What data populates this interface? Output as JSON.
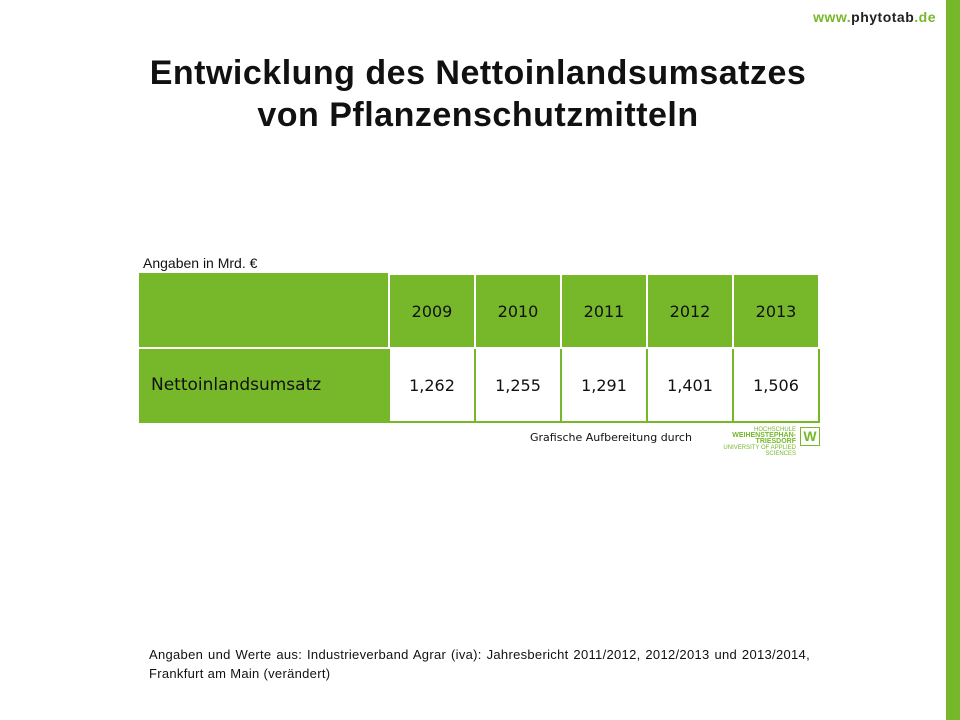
{
  "header": {
    "url_prefix": "www.",
    "url_main": "phytotab",
    "url_suffix": ".de"
  },
  "title_line1": "Entwicklung des Nettoinlandsumsatzes",
  "title_line2": "von Pflanzenschutzmitteln",
  "unit": "Angaben in Mrd. €",
  "table": {
    "years": [
      "2009",
      "2010",
      "2011",
      "2012",
      "2013"
    ],
    "row_label": "Nettoinlandsumsatz",
    "values": [
      "1,262",
      "1,255",
      "1,291",
      "1,401",
      "1,506"
    ]
  },
  "credit": "Grafische Aufbereitung durch",
  "logo": {
    "line1": "HOCHSCHULE",
    "line2": "WEIHENSTEPHAN-TRIESDORF",
    "line3": "UNIVERSITY OF APPLIED SCIENCES",
    "mark": "W"
  },
  "source": "Angaben und Werte aus: Industrieverband Agrar (iva): Jahresbericht 2011/2012, 2012/2013 und 2013/2014, Frankfurt am Main  (verändert)",
  "colors": {
    "accent": "#76b82a"
  }
}
